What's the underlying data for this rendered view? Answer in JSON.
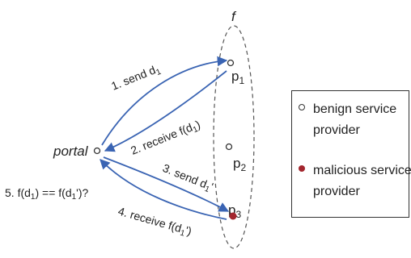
{
  "diagram": {
    "f_label": "f",
    "portal_label": "portal",
    "nodes": [
      {
        "label": "p",
        "sub": "1"
      },
      {
        "label": "p",
        "sub": "2"
      },
      {
        "label": "p",
        "sub": "3"
      }
    ],
    "arrows": [
      {
        "text": "1. send d",
        "sub": "1",
        "suffix": ""
      },
      {
        "text": "2. receive f(d",
        "sub": "1",
        "suffix": ")"
      },
      {
        "text": "3. send d",
        "sub": "1",
        "suffix": "'"
      },
      {
        "text": "4. receive f(d",
        "sub": "1",
        "suffix": "')"
      }
    ],
    "check": {
      "pre": "5. f(d",
      "sub1": "1",
      "mid": ") == f(d",
      "sub2": "1",
      "post": "')?"
    }
  },
  "legend": {
    "benign_line1": "benign service",
    "benign_line2": "provider",
    "malicious_line1": "malicious service",
    "malicious_line2": "provider"
  },
  "colors": {
    "arrow": "#3a64b3",
    "malicious_node": "#a3262e",
    "outline": "#333333"
  }
}
